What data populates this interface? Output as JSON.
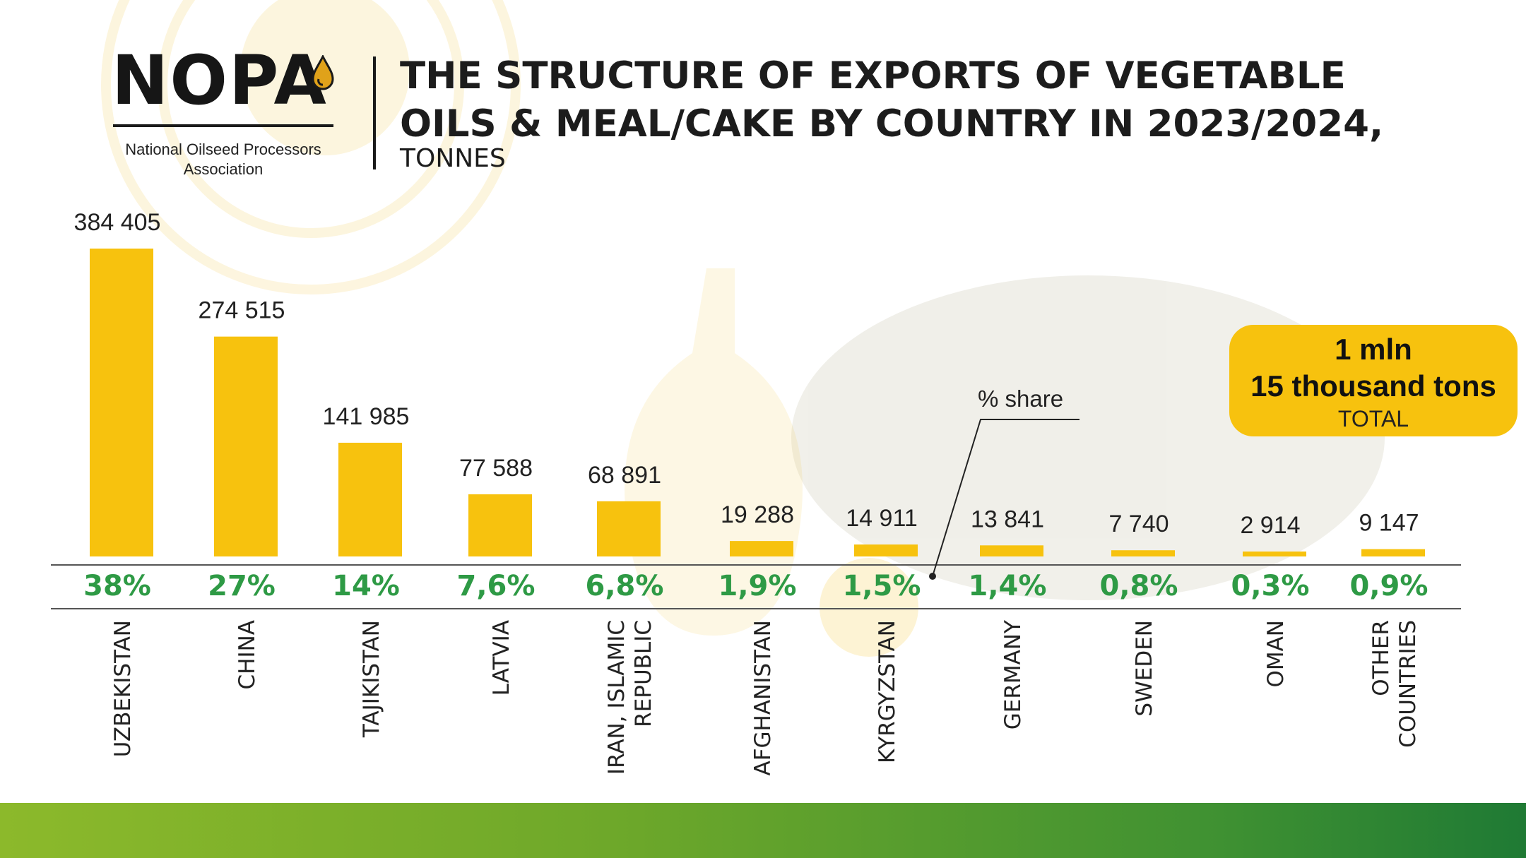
{
  "logo": {
    "wordmark": "NOPA",
    "org_line1": "National Oilseed Processors",
    "org_line2": "Association"
  },
  "title_line1": "THE STRUCTURE OF EXPORTS OF VEGETABLE",
  "title_line2": "OILS & MEAL/CAKE BY COUNTRY IN 2023/2024,",
  "subtitle": "TONNES",
  "total": {
    "line1": "1 mln",
    "line2": "15 thousand tons",
    "line3": "TOTAL"
  },
  "share_annotation": "% share",
  "colors": {
    "bar": "#f7c20e",
    "share_text": "#2e9a45",
    "total_box": "#f7c20e"
  },
  "chart_data": {
    "type": "bar",
    "categories": [
      "UZBEKISTAN",
      "CHINA",
      "TAJIKISTAN",
      "LATVIA",
      "IRAN, ISLAMIC REPUBLIC",
      "AFGHANISTAN",
      "KYRGYZSTAN",
      "GERMANY",
      "SWEDEN",
      "OMAN",
      "OTHER COUNTRIES"
    ],
    "values": [
      384405,
      274515,
      141985,
      77588,
      68891,
      19288,
      14911,
      13841,
      7740,
      2914,
      9147
    ],
    "value_labels": [
      "384 405",
      "274 515",
      "141 985",
      "77 588",
      "68 891",
      "19 288",
      "14 911",
      "13 841",
      "7 740",
      "2 914",
      "9 147"
    ],
    "shares": [
      "38%",
      "27%",
      "14%",
      "7,6%",
      "6,8%",
      "1,9%",
      "1,5%",
      "1,4%",
      "0,8%",
      "0,3%",
      "0,9%"
    ],
    "category_lines": [
      [
        "UZBEKISTAN"
      ],
      [
        "CHINA"
      ],
      [
        "TAJIKISTAN"
      ],
      [
        "LATVIA"
      ],
      [
        "IRAN, ISLAMIC",
        "REPUBLIC"
      ],
      [
        "AFGHANISTAN"
      ],
      [
        "KYRGYZSTAN"
      ],
      [
        "GERMANY"
      ],
      [
        "SWEDEN"
      ],
      [
        "OMAN"
      ],
      [
        "OTHER",
        "COUNTRIES"
      ]
    ],
    "title": "THE STRUCTURE OF EXPORTS OF VEGETABLE OILS & MEAL/CAKE BY COUNTRY IN 2023/2024, TONNES",
    "xlabel": "",
    "ylabel": "",
    "ylim": [
      0,
      384405
    ],
    "grid": false,
    "unit": "TONNES"
  }
}
